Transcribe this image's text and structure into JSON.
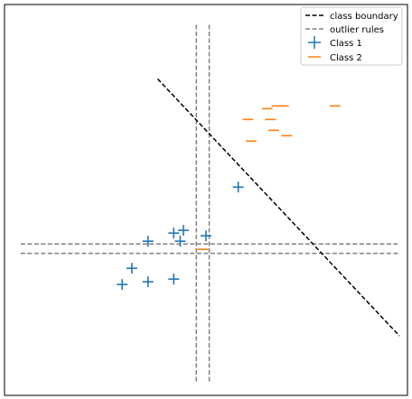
{
  "chart_data": {
    "type": "scatter",
    "title": "",
    "xlabel": "",
    "ylabel": "",
    "xlim": [
      -0.75,
      11.75
    ],
    "ylim": [
      -4.7,
      9.75
    ],
    "grid": false,
    "axis_ticks": false,
    "legend_position": "top-right",
    "legend": [
      {
        "label": "class boundary",
        "style": "dashed",
        "color": "#000000"
      },
      {
        "label": "outlier rules",
        "style": "dashed",
        "color": "#808080"
      },
      {
        "label": "Class 1",
        "marker": "+",
        "color": "#1f77b4"
      },
      {
        "label": "Class 2",
        "marker": "_",
        "color": "#ff7f0e"
      }
    ],
    "series": [
      {
        "name": "Class 1",
        "marker": "+",
        "color": "#1f77b4",
        "points": [
          [
            6.5,
            3.0
          ],
          [
            5.5,
            1.2
          ],
          [
            4.8,
            1.4
          ],
          [
            4.7,
            1.0
          ],
          [
            4.5,
            1.3
          ],
          [
            3.7,
            1.0
          ],
          [
            3.2,
            0.0
          ],
          [
            2.9,
            -0.6
          ],
          [
            3.7,
            -0.5
          ],
          [
            4.5,
            -0.4
          ]
        ]
      },
      {
        "name": "Class 2",
        "marker": "_",
        "color": "#ff7f0e",
        "points": [
          [
            9.5,
            6.0
          ],
          [
            7.9,
            6.0
          ],
          [
            7.7,
            6.0
          ],
          [
            7.4,
            5.9
          ],
          [
            7.5,
            5.5
          ],
          [
            6.8,
            5.5
          ],
          [
            7.6,
            5.1
          ],
          [
            8.0,
            4.9
          ],
          [
            6.9,
            4.7
          ],
          [
            5.4,
            0.7
          ]
        ]
      },
      {
        "name": "class boundary",
        "type": "line",
        "style": "dashed",
        "color": "#000000",
        "points": [
          [
            4.0,
            7.0
          ],
          [
            11.5,
            -2.5
          ]
        ]
      }
    ],
    "outlier_rules": {
      "color": "#808080",
      "vertical_x": [
        5.2,
        5.6
      ],
      "horizontal_y": [
        0.55,
        0.9
      ]
    }
  }
}
